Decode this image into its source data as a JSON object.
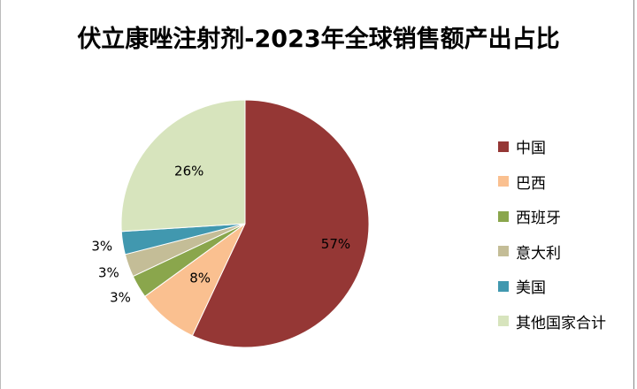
{
  "chart_data": {
    "type": "pie",
    "title": "伏立康唑注射剂-2023年全球销售额产出占比",
    "categories": [
      "中国",
      "巴西",
      "西班牙",
      "意大利",
      "美国",
      "其他国家合计"
    ],
    "values": [
      57,
      8,
      3,
      3,
      3,
      26
    ],
    "labels": [
      "57%",
      "8%",
      "3%",
      "3%",
      "3%",
      "26%"
    ],
    "colors": [
      "#953735",
      "#fac090",
      "#8aa64c",
      "#c4bd97",
      "#4198af",
      "#d7e4bd"
    ],
    "legend_position": "right"
  }
}
